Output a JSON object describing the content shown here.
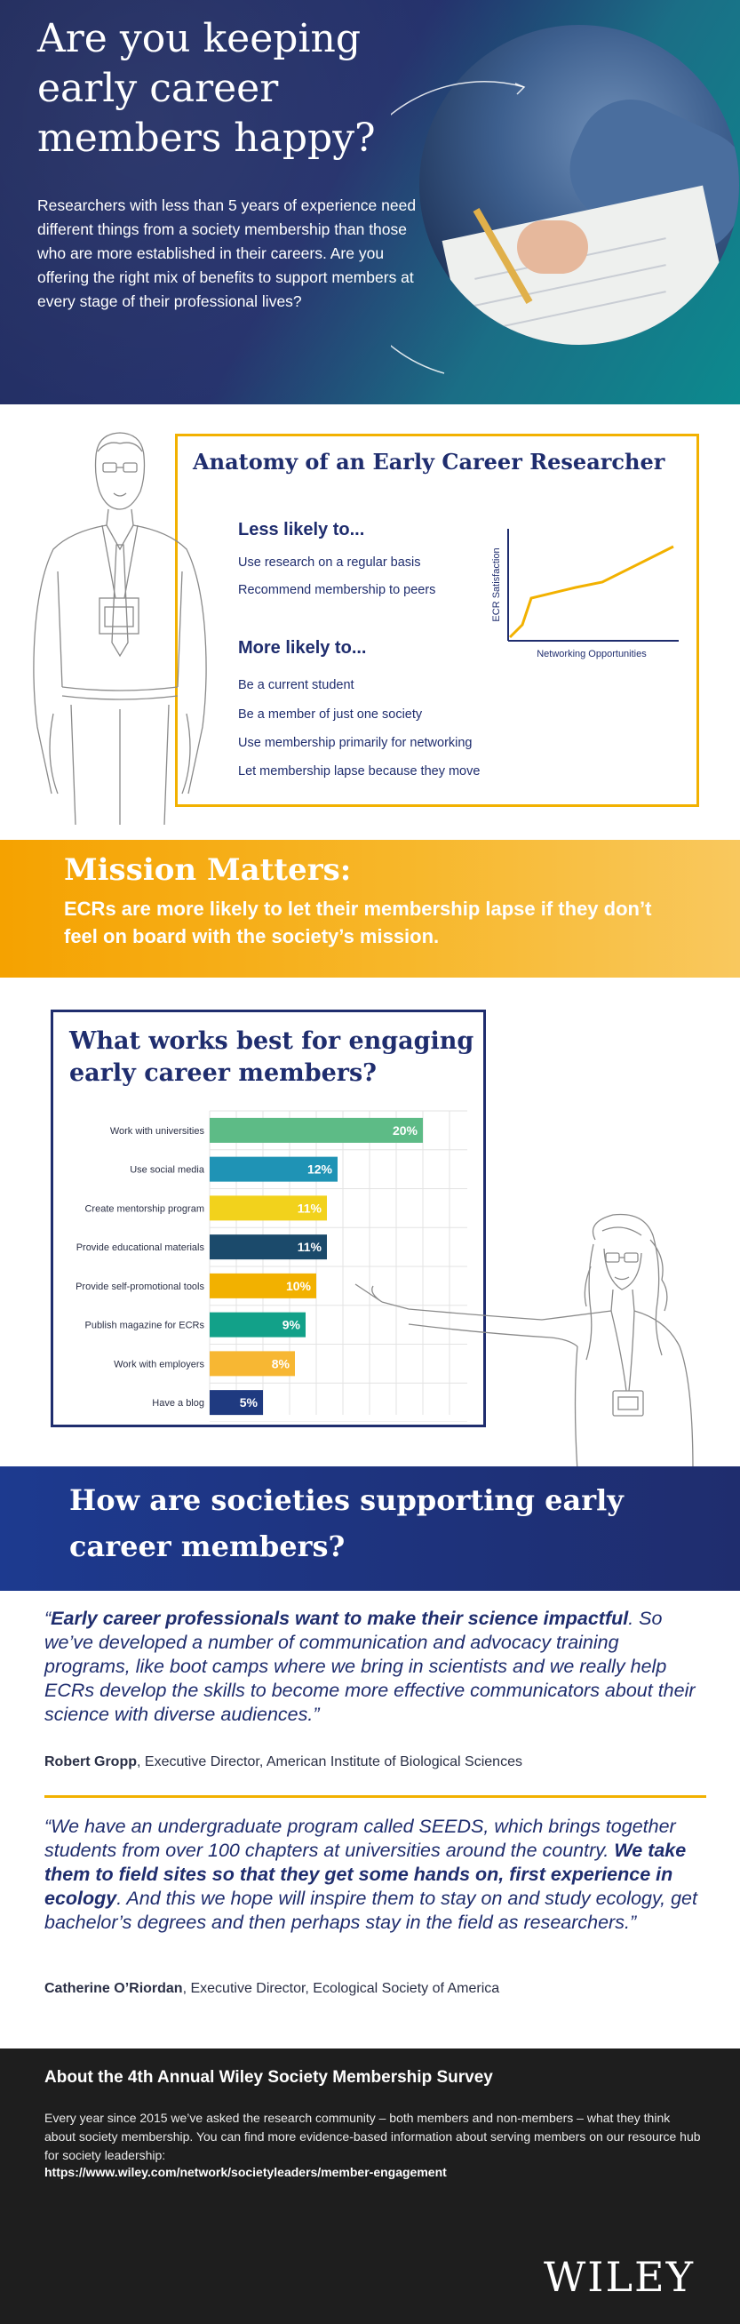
{
  "hero": {
    "title": "Are you keeping early career members happy?",
    "body": "Researchers with less than 5 years of experience need different things from a society membership than those who are more established in their careers. Are you offering the right mix of benefits to support members at every stage of their professional lives?"
  },
  "anatomy": {
    "title": "Anatomy of an Early Career Researcher",
    "less_heading": "Less likely to...",
    "less_items": [
      "Use research on a regular basis",
      "Recommend membership to peers"
    ],
    "more_heading": "More likely to...",
    "more_items": [
      "Be a current student",
      "Be a member of just one society",
      "Use membership primarily for networking",
      "Let membership lapse because they move"
    ],
    "graph": {
      "ylabel": "ECR Satisfaction",
      "xlabel": "Networking Opportunities",
      "color": "#f2b100"
    }
  },
  "mission": {
    "title": "Mission Matters:",
    "body": "ECRs are more likely to let their membership lapse if they don’t feel on board with the society’s mission."
  },
  "engage": {
    "title": "What works best for engaging early career members?"
  },
  "chart_data": {
    "type": "bar",
    "orientation": "horizontal",
    "title": "What works best for engaging early career members?",
    "categories": [
      "Work with universities",
      "Use social media",
      "Create mentorship program",
      "Provide educational materials",
      "Provide self-promotional tools",
      "Publish magazine for ECRs",
      "Work with employers",
      "Have a blog"
    ],
    "values": [
      20,
      12,
      11,
      11,
      10,
      9,
      8,
      5
    ],
    "value_labels": [
      "20%",
      "12%",
      "11%",
      "11%",
      "10%",
      "9%",
      "8%",
      "5%"
    ],
    "colors": [
      "#5dbb86",
      "#1f93b5",
      "#f2d21c",
      "#1b4a6b",
      "#f2b100",
      "#12a189",
      "#f7b733",
      "#1f3a80"
    ],
    "xlim": [
      0,
      20
    ],
    "grid": true
  },
  "societies": {
    "title": "How are societies supporting early career members?",
    "quote1": {
      "open": "“",
      "bold": "Early career professionals want to make their science impactful",
      "rest": ". So we’ve developed a number of communication and advocacy training programs, like boot camps where we bring in scientists and we really help ECRs develop the skills to become more effective  communicators about their science with diverse audiences.”",
      "name": "Robert Gropp",
      "role": ", Executive Director, American Institute of Biological Sciences"
    },
    "quote2": {
      "pre": "“We have an undergraduate program called SEEDS, which brings together students from over 100 chapters at universities around the country. ",
      "bold": "We take them to field sites so that they get some hands on, first experience in ecology",
      "rest": ". And this we hope will inspire them to stay on and study ecology, get bachelor’s degrees and then perhaps stay in the field as researchers.”",
      "name": "Catherine O’Riordan",
      "role": ", Executive Director, Ecological Society of America"
    }
  },
  "about": {
    "title": "About the 4th Annual Wiley Society Membership Survey",
    "body": "Every year since 2015 we’ve asked the research community – both members and non-members – what they think about society membership. You can find more evidence-based information about serving members on our resource hub for society leadership:",
    "link": "https://www.wiley.com/network/societyleaders/member-engagement",
    "logo": "WILEY"
  }
}
